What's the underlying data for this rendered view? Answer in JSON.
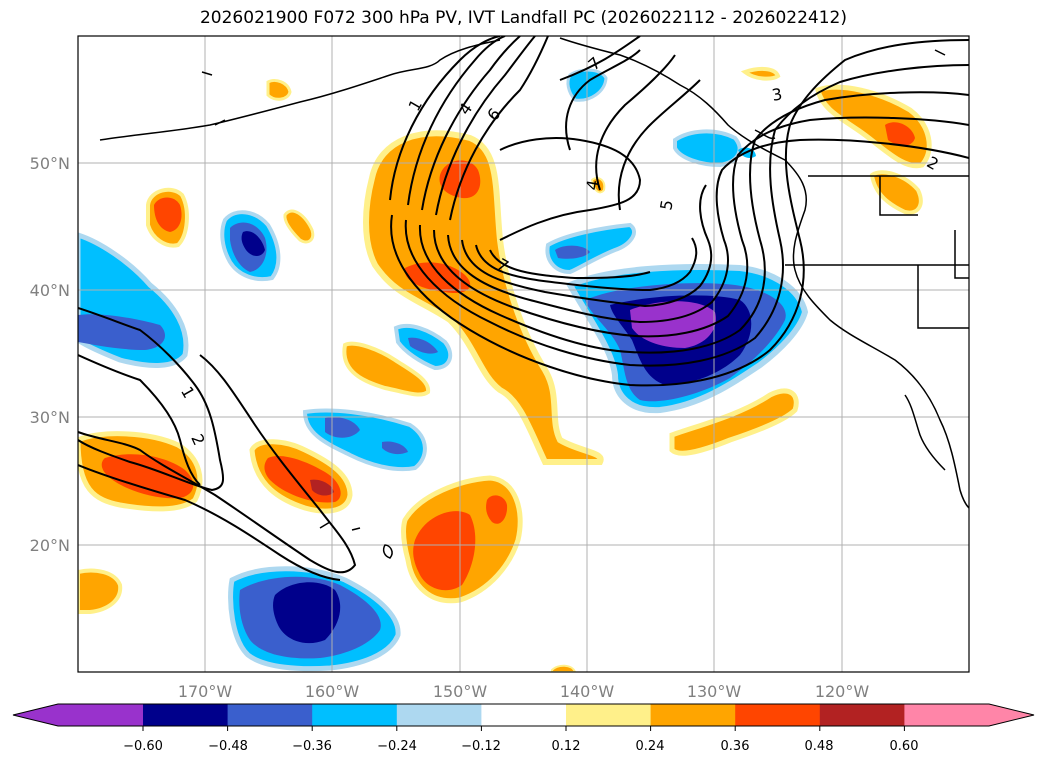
{
  "title": "2026021900 F072 300 hPa PV, IVT Landfall PC (2026022112 - 2026022412)",
  "map": {
    "projection": "PlateCarree",
    "lon_range": [
      -180,
      -110
    ],
    "lat_range": [
      10,
      60
    ],
    "lon_ticks": [
      "170°W",
      "160°W",
      "150°W",
      "140°W",
      "130°W",
      "120°W"
    ],
    "lat_ticks": [
      "50°N",
      "40°N",
      "30°N",
      "20°N"
    ],
    "grid": true,
    "contour_labels": [
      "1",
      "4",
      "6",
      "7",
      "4",
      "5",
      "7",
      "3",
      "2",
      "1",
      "2"
    ]
  },
  "colorbar": {
    "ticks": [
      "−0.60",
      "−0.48",
      "−0.36",
      "−0.24",
      "−0.12",
      "0.12",
      "0.24",
      "0.36",
      "0.48",
      "0.60"
    ],
    "colors": [
      "#9932cc",
      "#00008b",
      "#3a5fcd",
      "#00bfff",
      "#add8f0",
      "#ffffff",
      "#fff08a",
      "#ffa500",
      "#ff4500",
      "#b22222",
      "#ff85a8"
    ],
    "extend": "both"
  }
}
